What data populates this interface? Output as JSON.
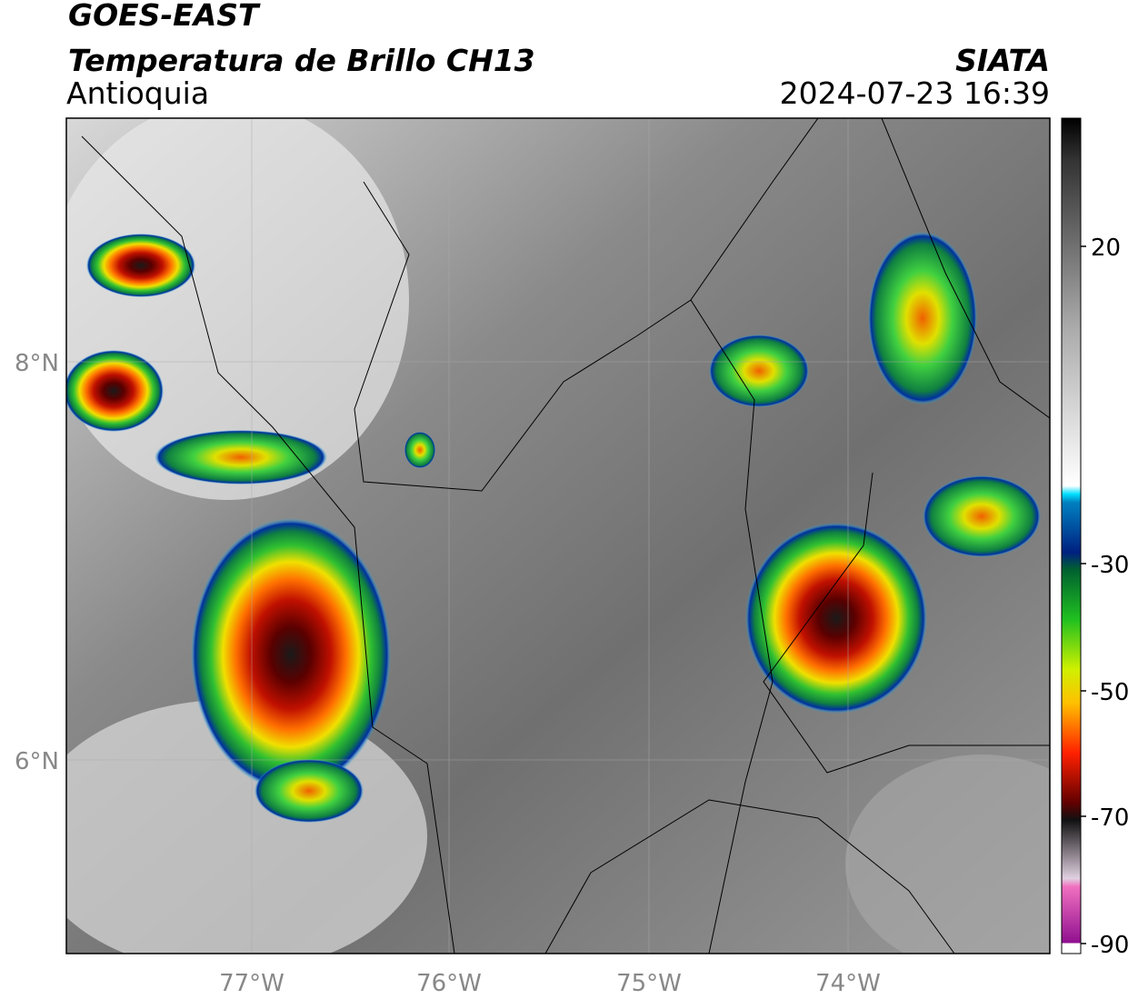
{
  "header": {
    "satellite": "GOES-EAST",
    "product": "Temperatura de Brillo CH13",
    "region": "Antioquia",
    "source": "SIATA",
    "datetime": "2024-07-23 16:39"
  },
  "axes": {
    "lat_labels": [
      "8°N",
      "6°N"
    ],
    "lon_labels": [
      "77°W",
      "76°W",
      "75°W",
      "74°W"
    ]
  },
  "colorbar": {
    "tick_labels": [
      "20",
      "-30",
      "-50",
      "-70",
      "-90"
    ]
  }
}
